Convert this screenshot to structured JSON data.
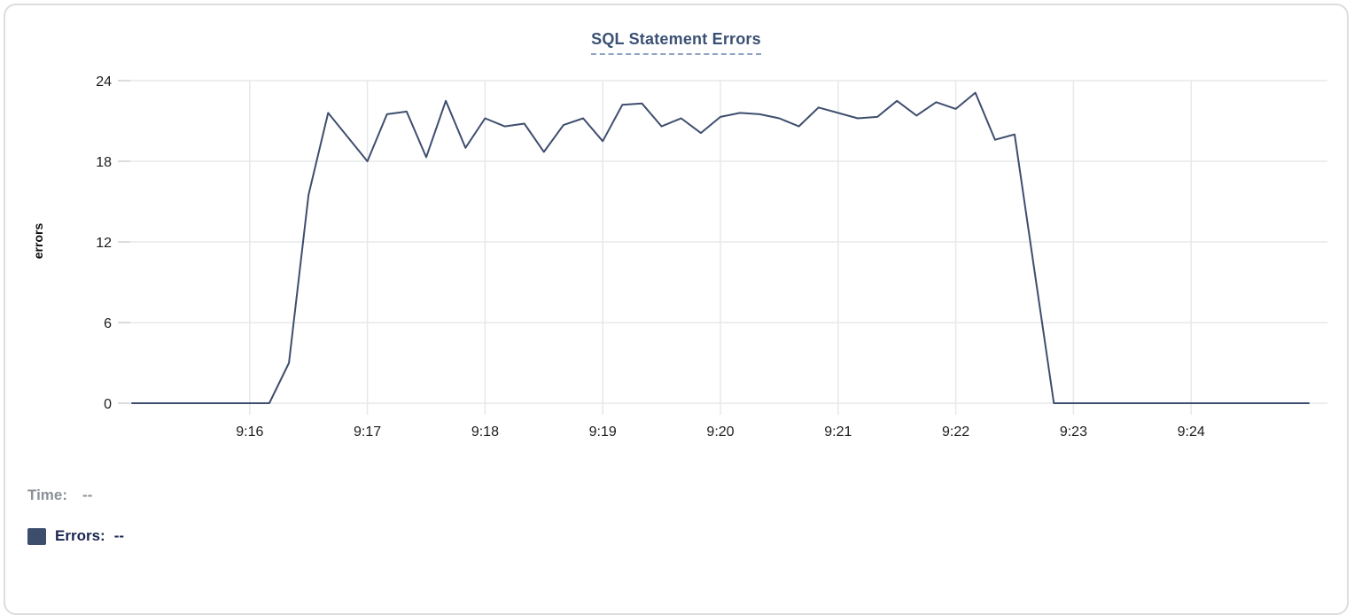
{
  "chart": {
    "title": "SQL Statement Errors",
    "y_axis_label": "errors"
  },
  "legend": {
    "time_label": "Time:",
    "time_value": "--",
    "errors_label": "Errors:",
    "errors_value": "--",
    "swatch_color": "#3d4d6c"
  },
  "colors": {
    "line": "#3f4e6e",
    "grid": "#e7e8ea",
    "title": "#3b5174",
    "title_underline": "#93a4c3",
    "legend_time_gray": "#8c9097",
    "legend_errors_navy": "#19264e",
    "card_border": "#dcdde0"
  },
  "chart_data": {
    "type": "line",
    "title": "SQL Statement Errors",
    "xlabel": "",
    "ylabel": "errors",
    "x_start": "9:15:00",
    "x_end": "9:25:00",
    "interval_seconds": 10,
    "x_tick_labels": [
      "9:16",
      "9:17",
      "9:18",
      "9:19",
      "9:20",
      "9:21",
      "9:22",
      "9:23",
      "9:24"
    ],
    "y_ticks": [
      0,
      6,
      12,
      18,
      24
    ],
    "ylim": [
      0,
      24
    ],
    "grid": true,
    "legend_position": "bottom-left",
    "series": [
      {
        "name": "Errors",
        "values": [
          0,
          0,
          0,
          0,
          0,
          0,
          0,
          0,
          3,
          15.5,
          21.6,
          19.8,
          18,
          21.5,
          21.7,
          18.3,
          22.5,
          19,
          21.2,
          20.6,
          20.8,
          18.7,
          20.7,
          21.2,
          19.5,
          22.2,
          22.3,
          20.6,
          21.2,
          20.1,
          21.3,
          21.6,
          21.5,
          21.2,
          20.6,
          22,
          21.6,
          21.2,
          21.3,
          22.5,
          21.4,
          22.4,
          21.9,
          23.1,
          19.6,
          20,
          10,
          0,
          0,
          0,
          0,
          0,
          0,
          0,
          0,
          0,
          0,
          0,
          0,
          0,
          0
        ]
      }
    ]
  }
}
